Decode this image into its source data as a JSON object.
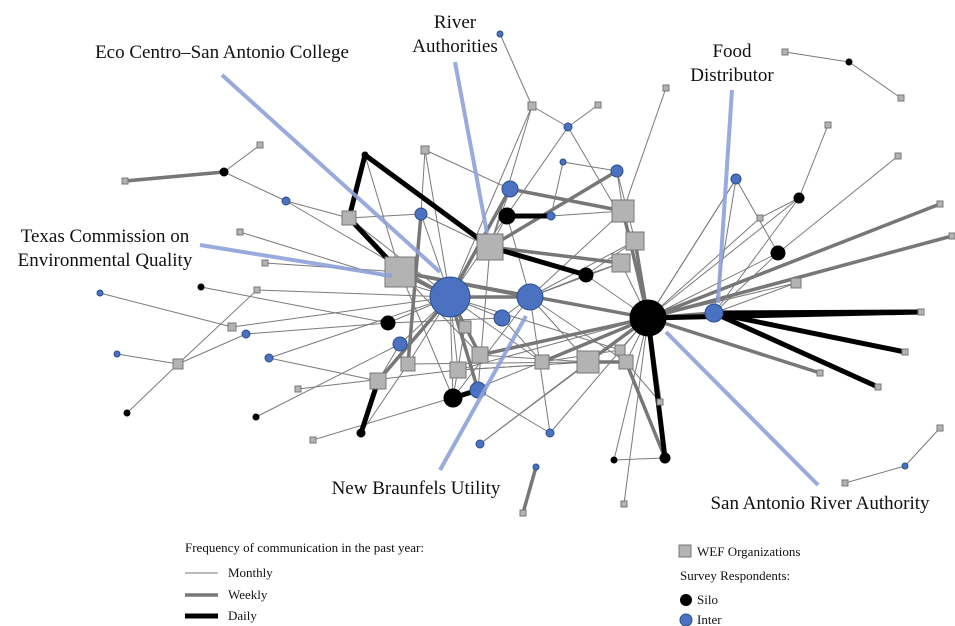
{
  "annotations": [
    {
      "lines": [
        "Eco Centro–San Antonio College"
      ]
    },
    {
      "lines": [
        "River",
        "Authorities"
      ]
    },
    {
      "lines": [
        "Food",
        "Distributor"
      ]
    },
    {
      "lines": [
        "Texas Commission on",
        "Environmental Quality"
      ]
    },
    {
      "lines": [
        "New Braunfels Utility"
      ]
    },
    {
      "lines": [
        "San Antonio  River Authority"
      ]
    }
  ],
  "legend": {
    "frequency": {
      "title": "Frequency of communication  in the past year:",
      "items": [
        "Monthly",
        "Weekly",
        "Daily"
      ]
    },
    "nodes": {
      "organizations": "WEF Organizations",
      "respondents_title": "Survey Respondents:",
      "respondent_types": [
        "Silo",
        "Inter"
      ]
    }
  }
}
